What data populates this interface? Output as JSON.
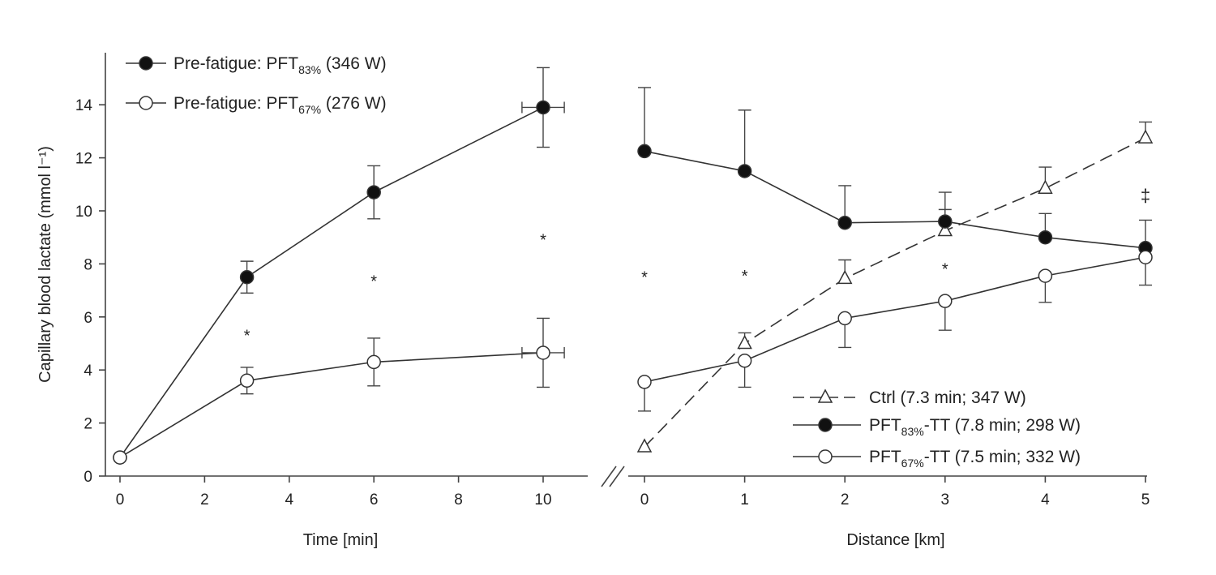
{
  "chart_data": [
    {
      "type": "line",
      "panel": "left",
      "xlabel": "Time [min]",
      "ylabel": "Capillary blood lactate (mmol l⁻¹)",
      "xticks": [
        0,
        2,
        4,
        6,
        8,
        10
      ],
      "yticks": [
        0,
        2,
        4,
        6,
        8,
        10,
        12,
        14
      ],
      "xlim": [
        0,
        10.5
      ],
      "ylim": [
        0,
        15.5
      ],
      "series": [
        {
          "name": "PFT83",
          "legend": {
            "prefix": "Pre-fatigue: PFT",
            "sub": "83%",
            "suffix": " (346 W)"
          },
          "marker": "filled-circle",
          "dash": false,
          "x": [
            0,
            3,
            6,
            10
          ],
          "y": [
            0.7,
            7.5,
            10.7,
            13.9
          ],
          "err_up": [
            0,
            0.6,
            1.0,
            1.5
          ],
          "err_down": [
            0,
            0.6,
            1.0,
            1.5
          ],
          "xerr": [
            0,
            0,
            0,
            0.5
          ]
        },
        {
          "name": "PFT67",
          "legend": {
            "prefix": "Pre-fatigue: PFT",
            "sub": "67%",
            "suffix": " (276 W)"
          },
          "marker": "open-circle",
          "dash": false,
          "x": [
            0,
            3,
            6,
            10
          ],
          "y": [
            0.7,
            3.6,
            4.3,
            4.65
          ],
          "err_up": [
            0,
            0.5,
            0.9,
            1.3
          ],
          "err_down": [
            0,
            0.5,
            0.9,
            1.3
          ],
          "xerr": [
            0,
            0,
            0,
            0.5
          ]
        }
      ],
      "annotations": [
        {
          "text": "*",
          "x": 3,
          "y": 5.4
        },
        {
          "text": "*",
          "x": 6,
          "y": 7.45
        },
        {
          "text": "*",
          "x": 10,
          "y": 9.0
        }
      ]
    },
    {
      "type": "line",
      "panel": "right",
      "xlabel": "Distance [km]",
      "xticks": [
        0,
        1,
        2,
        3,
        4,
        5
      ],
      "xlim": [
        0,
        5
      ],
      "ylim": [
        0,
        15.5
      ],
      "series": [
        {
          "name": "Ctrl",
          "legend": {
            "prefix": "Ctrl (7.3 min; 347 W)",
            "sub": "",
            "suffix": ""
          },
          "marker": "open-triangle",
          "dash": true,
          "x": [
            0,
            1,
            2,
            3,
            4,
            5
          ],
          "y": [
            1.1,
            5.0,
            7.45,
            9.25,
            10.85,
            12.75
          ],
          "err_up": [
            0,
            0.4,
            0.7,
            0.8,
            0.8,
            0.6
          ],
          "err_down": [
            0,
            0,
            0,
            0,
            0,
            0
          ]
        },
        {
          "name": "PFT83-TT",
          "legend": {
            "prefix": "PFT",
            "sub": "83%",
            "suffix": "-TT (7.8 min; 298 W)"
          },
          "marker": "filled-circle",
          "dash": false,
          "x": [
            0,
            1,
            2,
            3,
            4,
            5
          ],
          "y": [
            12.25,
            11.5,
            9.55,
            9.6,
            9.0,
            8.6
          ],
          "err_up": [
            2.4,
            2.3,
            1.4,
            1.1,
            0.9,
            1.05
          ],
          "err_down": [
            0,
            0,
            0,
            0,
            0,
            0
          ]
        },
        {
          "name": "PFT67-TT",
          "legend": {
            "prefix": "PFT",
            "sub": "67%",
            "suffix": "-TT (7.5 min; 332 W)"
          },
          "marker": "open-circle",
          "dash": false,
          "x": [
            0,
            1,
            2,
            3,
            4,
            5
          ],
          "y": [
            3.55,
            4.35,
            5.95,
            6.6,
            7.55,
            8.25
          ],
          "err_up": [
            0,
            0,
            0,
            0,
            0,
            0
          ],
          "err_down": [
            1.1,
            1.0,
            1.1,
            1.1,
            1.0,
            1.05
          ]
        }
      ],
      "annotations": [
        {
          "text": "*",
          "x": 0,
          "y": 7.6
        },
        {
          "text": "*",
          "x": 1,
          "y": 7.65
        },
        {
          "text": "*",
          "x": 3,
          "y": 7.9
        },
        {
          "text": "‡",
          "x": 5,
          "y": 10.6
        }
      ]
    }
  ]
}
